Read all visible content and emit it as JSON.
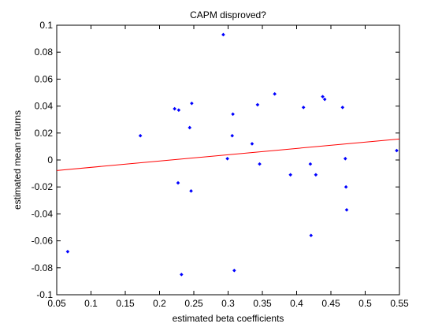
{
  "chart_data": {
    "type": "scatter",
    "title": "CAPM disproved?",
    "xlabel": "estimated beta coefficients",
    "ylabel": "estimated mean returns",
    "xlim": [
      0.05,
      0.55
    ],
    "ylim": [
      -0.1,
      0.1
    ],
    "xticks": [
      "0.05",
      "0.1",
      "0.15",
      "0.2",
      "0.25",
      "0.3",
      "0.35",
      "0.4",
      "0.45",
      "0.5",
      "0.55"
    ],
    "yticks": [
      "-0.1",
      "-0.08",
      "-0.06",
      "-0.04",
      "-0.02",
      "0",
      "0.02",
      "0.04",
      "0.06",
      "0.08",
      "0.1"
    ],
    "grid": false,
    "series": [
      {
        "kind": "points",
        "color": "#0000ff",
        "points": [
          [
            0.066,
            -0.068
          ],
          [
            0.172,
            0.018
          ],
          [
            0.222,
            0.038
          ],
          [
            0.227,
            -0.017
          ],
          [
            0.228,
            0.037
          ],
          [
            0.232,
            -0.085
          ],
          [
            0.244,
            0.024
          ],
          [
            0.246,
            -0.023
          ],
          [
            0.247,
            0.042
          ],
          [
            0.293,
            0.093
          ],
          [
            0.299,
            0.001
          ],
          [
            0.306,
            0.018
          ],
          [
            0.307,
            0.034
          ],
          [
            0.309,
            -0.082
          ],
          [
            0.335,
            0.012
          ],
          [
            0.343,
            0.041
          ],
          [
            0.346,
            -0.003
          ],
          [
            0.368,
            0.049
          ],
          [
            0.391,
            -0.011
          ],
          [
            0.41,
            0.039
          ],
          [
            0.42,
            -0.003
          ],
          [
            0.421,
            -0.056
          ],
          [
            0.428,
            -0.011
          ],
          [
            0.438,
            0.047
          ],
          [
            0.441,
            0.045
          ],
          [
            0.467,
            0.039
          ],
          [
            0.471,
            0.001
          ],
          [
            0.472,
            -0.02
          ],
          [
            0.473,
            -0.037
          ],
          [
            0.546,
            0.007
          ]
        ]
      },
      {
        "kind": "fit-line",
        "color": "#ff0000",
        "points": [
          [
            0.05,
            -0.0078
          ],
          [
            0.55,
            0.0156
          ]
        ]
      }
    ]
  }
}
